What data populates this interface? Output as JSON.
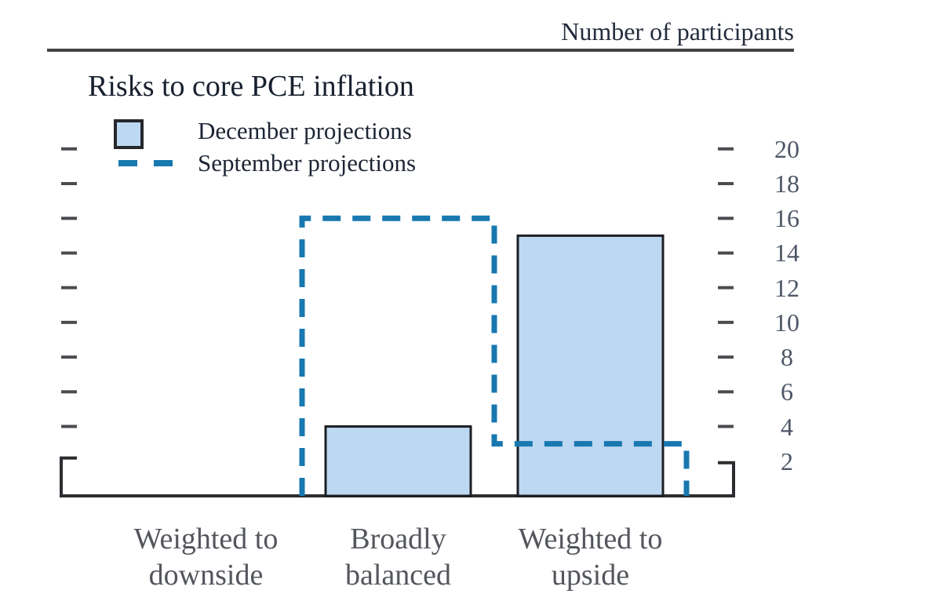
{
  "chart_data": {
    "type": "bar",
    "title": "Risks to core PCE inflation",
    "axis_title_right": "Number of participants",
    "categories": [
      "Weighted to downside",
      "Broadly balanced",
      "Weighted to upside"
    ],
    "category_label_lines": [
      [
        "Weighted to",
        "downside"
      ],
      [
        "Broadly",
        "balanced"
      ],
      [
        "Weighted to",
        "upside"
      ]
    ],
    "series": [
      {
        "name": "December projections",
        "style": "bar",
        "values": [
          0,
          4,
          15
        ]
      },
      {
        "name": "September projections",
        "style": "dashed-step",
        "values": [
          0,
          16,
          3
        ]
      }
    ],
    "yticks": [
      2,
      4,
      6,
      8,
      10,
      12,
      14,
      16,
      18,
      20
    ],
    "ylim": [
      0,
      21
    ],
    "ylabel": "Number of participants",
    "ylabel_side": "right",
    "grid": false,
    "legend_position": "top-left",
    "colors": {
      "bar_fill": "#bdd8f2",
      "bar_border": "#1c1e22",
      "september_line": "#1878b0",
      "axis": "#2b2d30",
      "tick": "#4a4c50",
      "number_labels": "#4e5766",
      "category_labels": "#53565c",
      "title_text": "#18202f",
      "header_rule": "#414345"
    }
  }
}
